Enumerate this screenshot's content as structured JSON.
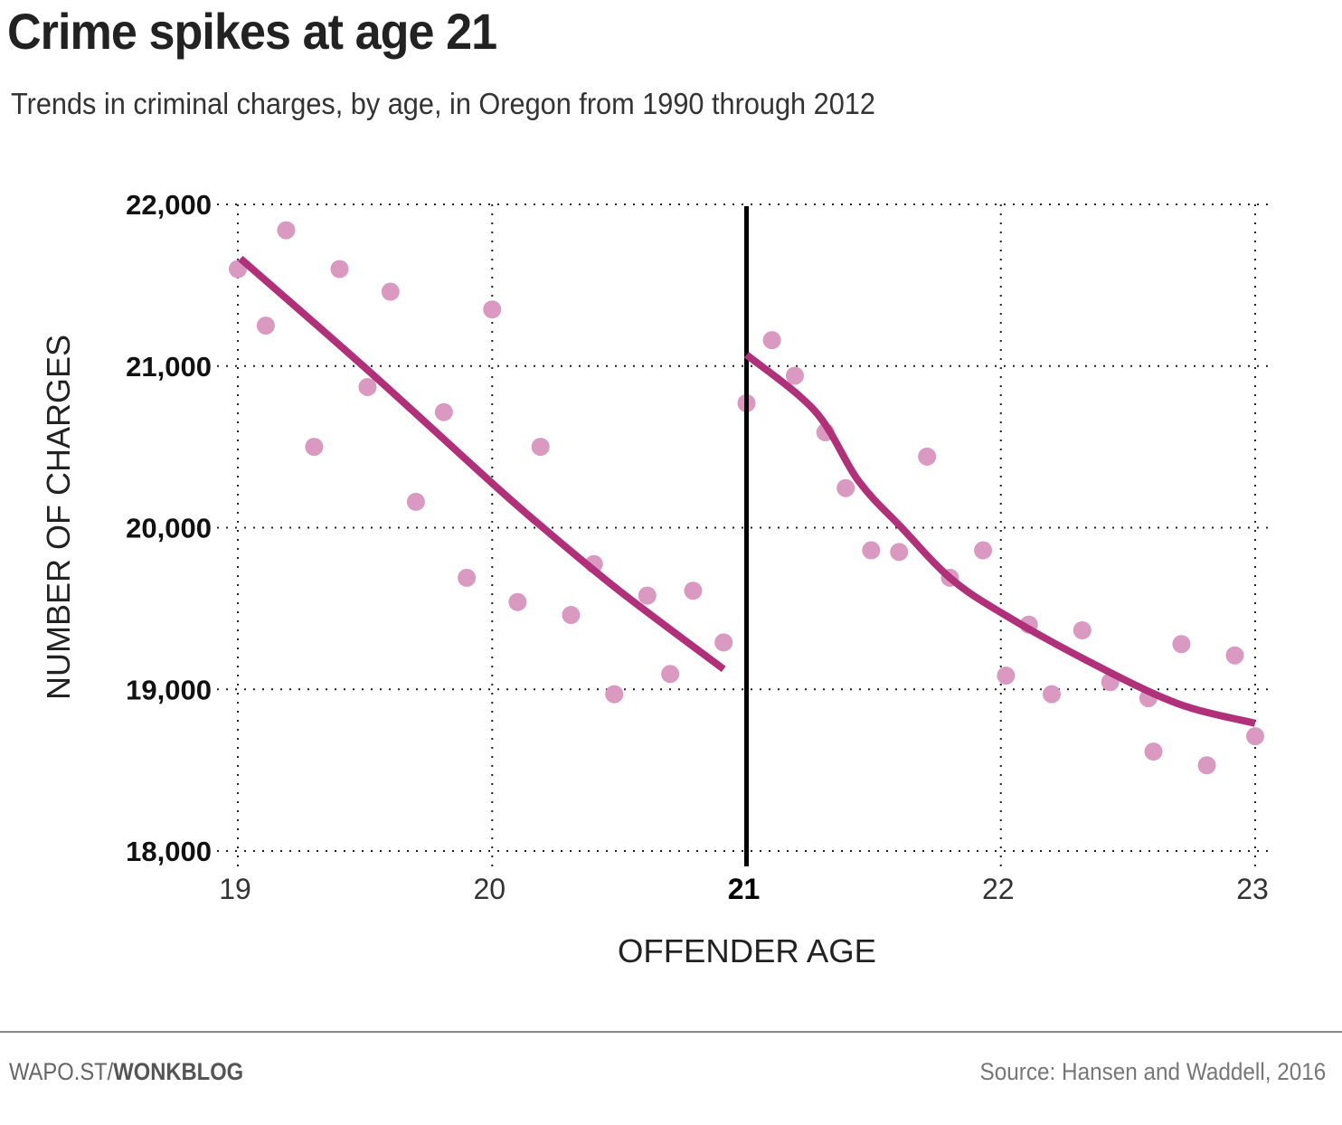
{
  "header": {
    "title": "Crime spikes at age 21",
    "subtitle": "Trends in criminal charges, by age, in Oregon from 1990 through 2012"
  },
  "footer": {
    "credit_prefix": "WAPO.ST/",
    "credit_bold": "WONKBLOG",
    "source": "Source: Hansen and Waddell, 2016"
  },
  "colors": {
    "points": "#d999c0",
    "fit_line": "#b0307a",
    "cutoff_line": "#000000",
    "grid": "#222222"
  },
  "chart_data": {
    "type": "scatter",
    "title": "Crime spikes at age 21",
    "subtitle": "Trends in criminal charges, by age, in Oregon from 1990 through 2012",
    "xlabel": "OFFENDER AGE",
    "ylabel": "NUMBER OF CHARGES",
    "xlim": [
      19,
      23
    ],
    "ylim": [
      18000,
      22000
    ],
    "x_ticks": [
      {
        "value": 19,
        "label": "19",
        "bold": false
      },
      {
        "value": 20,
        "label": "20",
        "bold": false
      },
      {
        "value": 21,
        "label": "21",
        "bold": true
      },
      {
        "value": 22,
        "label": "22",
        "bold": false
      },
      {
        "value": 23,
        "label": "23",
        "bold": false
      }
    ],
    "y_ticks": [
      {
        "value": 22000,
        "label": "22,000"
      },
      {
        "value": 21000,
        "label": "21,000"
      },
      {
        "value": 20000,
        "label": "20,000"
      },
      {
        "value": 19000,
        "label": "19,000"
      },
      {
        "value": 18000,
        "label": "18,000"
      }
    ],
    "grid": "dotted",
    "cutoff": 21,
    "series": [
      {
        "name": "Charges (under 21)",
        "kind": "points",
        "x": [
          19.0,
          19.11,
          19.19,
          19.3,
          19.4,
          19.51,
          19.6,
          19.7,
          19.81,
          19.9,
          20.0,
          20.1,
          20.19,
          20.31,
          20.4,
          20.48,
          20.61,
          20.7,
          20.79,
          20.91
        ],
        "y": [
          21600,
          21250,
          21840,
          20500,
          21600,
          20870,
          21460,
          20160,
          20715,
          19690,
          21350,
          19540,
          20500,
          19460,
          19775,
          18970,
          19580,
          19095,
          19610,
          19290
        ]
      },
      {
        "name": "Charges (21 and over)",
        "kind": "points",
        "x": [
          21.0,
          21.1,
          21.19,
          21.31,
          21.39,
          21.49,
          21.6,
          21.71,
          21.8,
          21.93,
          22.02,
          22.11,
          22.2,
          22.32,
          22.43,
          22.58,
          22.6,
          22.71,
          22.81,
          22.92,
          23.0
        ],
        "y": [
          20770,
          21160,
          20940,
          20590,
          20245,
          19860,
          19850,
          20440,
          19690,
          19860,
          19085,
          19400,
          18970,
          19365,
          19045,
          18945,
          18615,
          19280,
          18530,
          19210,
          18710
        ]
      },
      {
        "name": "Fit (under 21)",
        "kind": "line",
        "x": [
          19.01,
          19.5,
          20.0,
          20.2,
          20.5,
          20.91
        ],
        "y": [
          21665,
          20990,
          20275,
          20000,
          19610,
          19125
        ]
      },
      {
        "name": "Fit (21 and over)",
        "kind": "line",
        "x": [
          21.0,
          21.27,
          21.44,
          21.61,
          21.8,
          22.0,
          22.33,
          22.69,
          23.0
        ],
        "y": [
          21070,
          20720,
          20290,
          20000,
          19690,
          19475,
          19185,
          18915,
          18790
        ]
      }
    ]
  }
}
